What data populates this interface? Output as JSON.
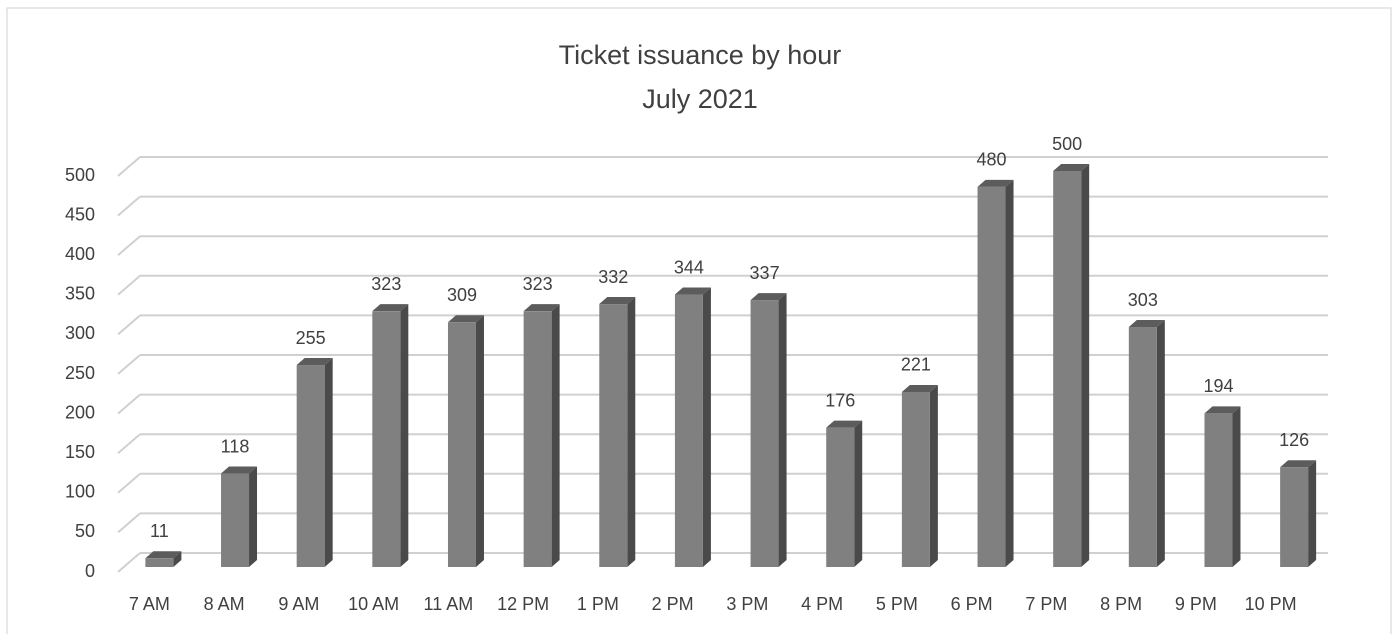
{
  "chart_data": {
    "type": "bar3d",
    "title": "Ticket issuance by hour",
    "subtitle": "July 2021",
    "categories": [
      "7 AM",
      "8 AM",
      "9 AM",
      "10 AM",
      "11 AM",
      "12 PM",
      "1 PM",
      "2 PM",
      "3 PM",
      "4 PM",
      "5 PM",
      "6 PM",
      "7 PM",
      "8 PM",
      "9 PM",
      "10 PM"
    ],
    "values": [
      11,
      118,
      255,
      323,
      309,
      323,
      332,
      344,
      337,
      176,
      221,
      480,
      500,
      303,
      194,
      126
    ],
    "color": "#808080",
    "ylim": [
      0,
      500
    ],
    "yticks": [
      0,
      50,
      100,
      150,
      200,
      250,
      300,
      350,
      400,
      450,
      500
    ],
    "grid": true
  }
}
